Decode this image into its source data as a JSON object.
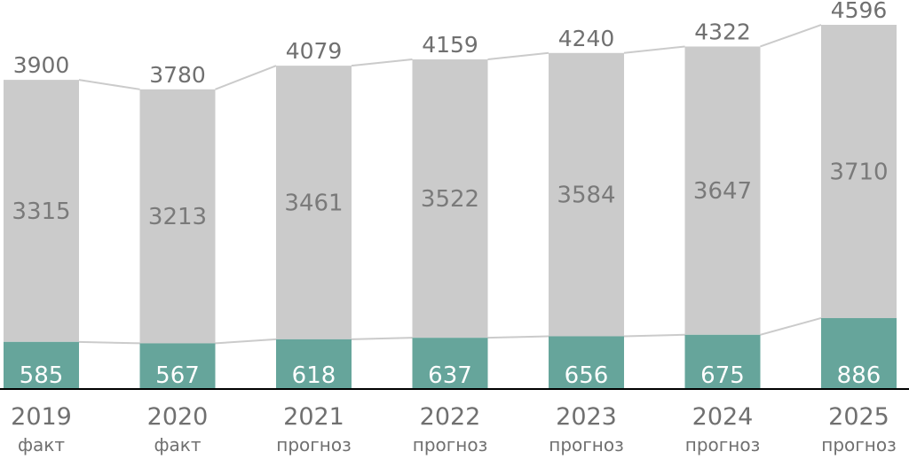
{
  "chart_data": {
    "type": "bar",
    "stacked": true,
    "categories": [
      "2019",
      "2020",
      "2021",
      "2022",
      "2023",
      "2024",
      "2025"
    ],
    "category_sublabels": [
      "факт",
      "факт",
      "прогноз",
      "прогноз",
      "прогноз",
      "прогноз",
      "прогноз"
    ],
    "series": [
      {
        "values": [
          585,
          567,
          618,
          637,
          656,
          675,
          886
        ],
        "color": "#66a59b",
        "label_color": "#ffffff"
      },
      {
        "values": [
          3315,
          3213,
          3461,
          3522,
          3584,
          3647,
          3710
        ],
        "color": "#cbcbcb",
        "label_color": "#7a7a7a"
      }
    ],
    "totals": [
      3900,
      3780,
      4079,
      4159,
      4240,
      4322,
      4596
    ],
    "connector_lines": true,
    "connector_color": "#cbcbcb",
    "baseline_color": "#000000",
    "axis_label_color": "#707070",
    "grid": false,
    "legend": "none",
    "title": "",
    "xlabel": "",
    "ylabel": ""
  }
}
